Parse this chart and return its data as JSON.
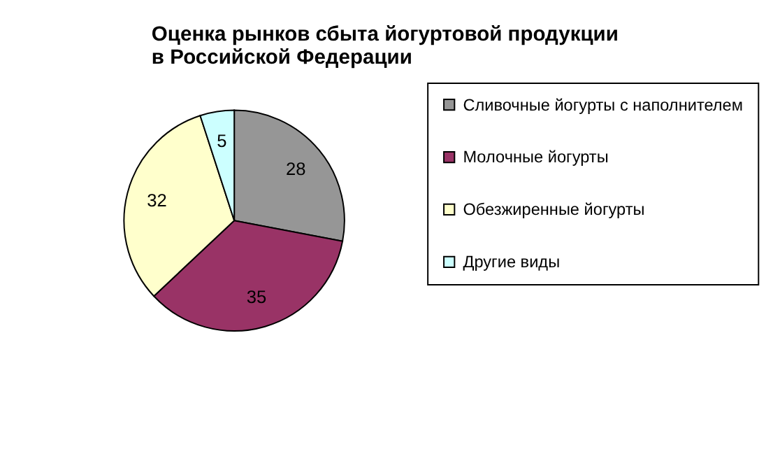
{
  "chart_data": {
    "type": "pie",
    "title": "Оценка рынков сбыта йогуртовой продукции в Российской Федерации",
    "categories": [
      "Сливочные йогурты с наполнителем",
      "Молочные йогурты",
      "Обезжиренные йогурты",
      "Другие виды"
    ],
    "values": [
      28,
      35,
      32,
      5
    ],
    "colors": [
      "#969696",
      "#993366",
      "#ffffcc",
      "#ccffff"
    ],
    "data_labels": true,
    "legend": "right"
  }
}
